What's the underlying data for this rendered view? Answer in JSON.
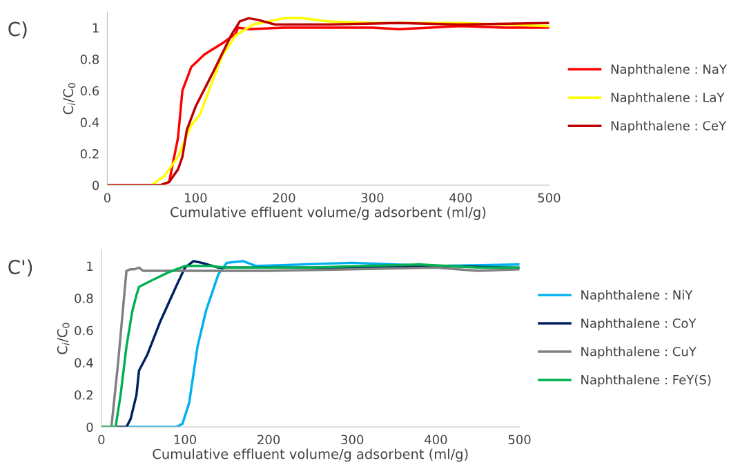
{
  "chart_data": [
    {
      "type": "line",
      "annotations": [
        "C)"
      ],
      "xlabel": "Cumulative effluent volume/g adsorbent (ml/g)",
      "ylabel": "C$_{i}$/C$_{0}$",
      "xlim": [
        0,
        500
      ],
      "xticks": [
        0,
        100,
        200,
        300,
        400,
        500
      ],
      "ylim": [
        0,
        1.1
      ],
      "yticks": [
        0,
        0.2,
        0.4,
        0.6,
        0.8,
        1
      ],
      "grid": false,
      "legend": "right",
      "marker": "none",
      "line_style": "solid",
      "series": [
        {
          "name": "Naphthalene : NaY",
          "color": "#ff0000",
          "x": [
            0,
            60,
            70,
            80,
            85,
            95,
            110,
            130,
            145,
            148,
            160,
            200,
            300,
            330,
            400,
            450,
            500
          ],
          "values": [
            0,
            0,
            0.02,
            0.3,
            0.6,
            0.75,
            0.83,
            0.9,
            0.96,
            1.0,
            0.99,
            1.0,
            1.0,
            0.99,
            1.01,
            1.0,
            1.0
          ]
        },
        {
          "name": "Naphthalene : LaY",
          "color": "#ffff00",
          "x": [
            0,
            50,
            55,
            65,
            80,
            95,
            105,
            115,
            130,
            145,
            165,
            200,
            220,
            250,
            300,
            400,
            500
          ],
          "values": [
            0,
            0,
            0.02,
            0.06,
            0.18,
            0.38,
            0.45,
            0.6,
            0.82,
            0.95,
            1.02,
            1.06,
            1.06,
            1.04,
            1.03,
            1.03,
            1.01
          ]
        },
        {
          "name": "Naphthalene : CeY",
          "color": "#c00000",
          "x": [
            0,
            60,
            70,
            80,
            85,
            90,
            100,
            120,
            140,
            150,
            160,
            170,
            190,
            250,
            330,
            400,
            500
          ],
          "values": [
            0,
            0,
            0.02,
            0.1,
            0.18,
            0.35,
            0.5,
            0.72,
            0.95,
            1.04,
            1.06,
            1.05,
            1.02,
            1.02,
            1.03,
            1.02,
            1.03
          ]
        }
      ]
    },
    {
      "type": "line",
      "annotations": [
        "C')"
      ],
      "xlabel": "Cumulative effluent volume/g adsorbent (ml/g)",
      "ylabel": "C$_{i}$/C$_{0}$",
      "xlim": [
        0,
        500
      ],
      "xticks": [
        0,
        100,
        200,
        300,
        400,
        500
      ],
      "ylim": [
        0,
        1.1
      ],
      "yticks": [
        0,
        0.2,
        0.4,
        0.6,
        0.8,
        1
      ],
      "grid": false,
      "legend": "right",
      "marker": "none",
      "line_style": "solid",
      "series": [
        {
          "name": "Naphthalene : NiY",
          "color": "#00b0f0",
          "x": [
            0,
            90,
            97,
            105,
            115,
            125,
            140,
            150,
            170,
            185,
            300,
            400,
            500
          ],
          "values": [
            0,
            0,
            0.02,
            0.15,
            0.5,
            0.72,
            0.95,
            1.02,
            1.03,
            1.0,
            1.02,
            1.0,
            1.01
          ]
        },
        {
          "name": "Naphthalene : CoY",
          "color": "#002060",
          "x": [
            0,
            30,
            35,
            42,
            45,
            55,
            70,
            90,
            100,
            110,
            120,
            140,
            300,
            400,
            500
          ],
          "values": [
            0,
            0,
            0.05,
            0.2,
            0.35,
            0.45,
            0.65,
            0.88,
            0.99,
            1.03,
            1.02,
            0.99,
            0.99,
            1.0,
            0.99
          ]
        },
        {
          "name": "Naphthalene : CuY",
          "color": "#808080",
          "x": [
            0,
            12,
            20,
            27,
            30,
            35,
            40,
            45,
            50,
            200,
            300,
            400,
            450,
            500
          ],
          "values": [
            0,
            0,
            0.4,
            0.8,
            0.97,
            0.98,
            0.98,
            0.99,
            0.97,
            0.97,
            0.98,
            0.99,
            0.97,
            0.98
          ]
        },
        {
          "name": "Naphthalene : FeY(S)",
          "color": "#00b050",
          "x": [
            0,
            17,
            23,
            30,
            37,
            42,
            45,
            60,
            80,
            100,
            130,
            150,
            250,
            380,
            450,
            500
          ],
          "values": [
            0,
            0,
            0.2,
            0.5,
            0.72,
            0.82,
            0.87,
            0.91,
            0.96,
            1.0,
            1.0,
            0.99,
            0.99,
            1.01,
            0.99,
            0.99
          ]
        }
      ]
    }
  ]
}
